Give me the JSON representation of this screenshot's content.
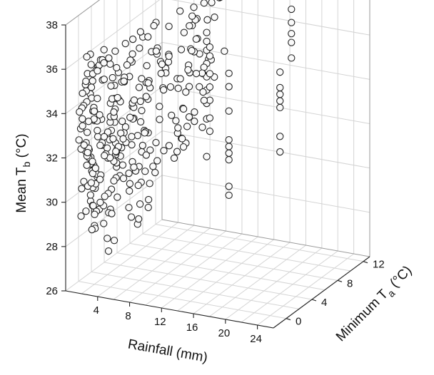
{
  "chart_data": {
    "type": "scatter",
    "projection": "3d",
    "grid": true,
    "axes": {
      "x": {
        "label": "Rainfall (mm)",
        "range": [
          0,
          26
        ],
        "ticks": [
          4,
          8,
          12,
          16,
          20,
          24
        ]
      },
      "y": {
        "label": "Minimum T_a (°C)",
        "label_main": "Minimum T",
        "label_sub": "a",
        "label_unit": " (°C)",
        "range": [
          -2,
          13
        ],
        "ticks": [
          0,
          4,
          8,
          12
        ]
      },
      "z": {
        "label": "Mean T_b (°C)",
        "label_main": "Mean T",
        "label_sub": "b",
        "label_unit": " (°C)",
        "range": [
          26,
          38
        ],
        "ticks": [
          26,
          28,
          30,
          32,
          34,
          36,
          38
        ]
      }
    },
    "clusters": [
      {
        "x": [
          0.5,
          1.5
        ],
        "y": [
          -1,
          2
        ],
        "z": [
          28.2,
          35.5
        ],
        "n": 55
      },
      {
        "x": [
          1.5,
          4
        ],
        "y": [
          -1,
          3
        ],
        "z": [
          29,
          36.5
        ],
        "n": 90
      },
      {
        "x": [
          3,
          7
        ],
        "y": [
          0,
          6
        ],
        "z": [
          29,
          37
        ],
        "n": 80
      },
      {
        "x": [
          6,
          10
        ],
        "y": [
          3,
          9
        ],
        "z": [
          31,
          37.5
        ],
        "n": 45
      },
      {
        "x": [
          7,
          11
        ],
        "y": [
          5,
          12
        ],
        "z": [
          33,
          37.8
        ],
        "n": 30
      },
      {
        "x": [
          2,
          6
        ],
        "y": [
          -1,
          2
        ],
        "z": [
          27.2,
          29.5
        ],
        "n": 8
      }
    ],
    "columns": [
      {
        "x": 8,
        "y": 10,
        "z": [
          30,
          31.7,
          32.4,
          33,
          33.6,
          34.2,
          34.8,
          35.2,
          35.6
        ]
      },
      {
        "x": 10,
        "y": 8,
        "z": [
          31.7,
          32.3,
          33.1,
          33.7,
          34.3,
          35.1,
          35.5
        ]
      },
      {
        "x": 14,
        "y": 6,
        "z": [
          29.5,
          29.9,
          31.1,
          31.4,
          31.7,
          32,
          33.3,
          34.4,
          35
        ]
      },
      {
        "x": 17,
        "y": 12,
        "z": [
          34.6,
          35.3,
          35.7,
          36.2,
          36.8
        ]
      },
      {
        "x": 22,
        "y": 4,
        "z": [
          32.4,
          33.1,
          34.4,
          34.7,
          35,
          35.3,
          36
        ]
      }
    ]
  }
}
